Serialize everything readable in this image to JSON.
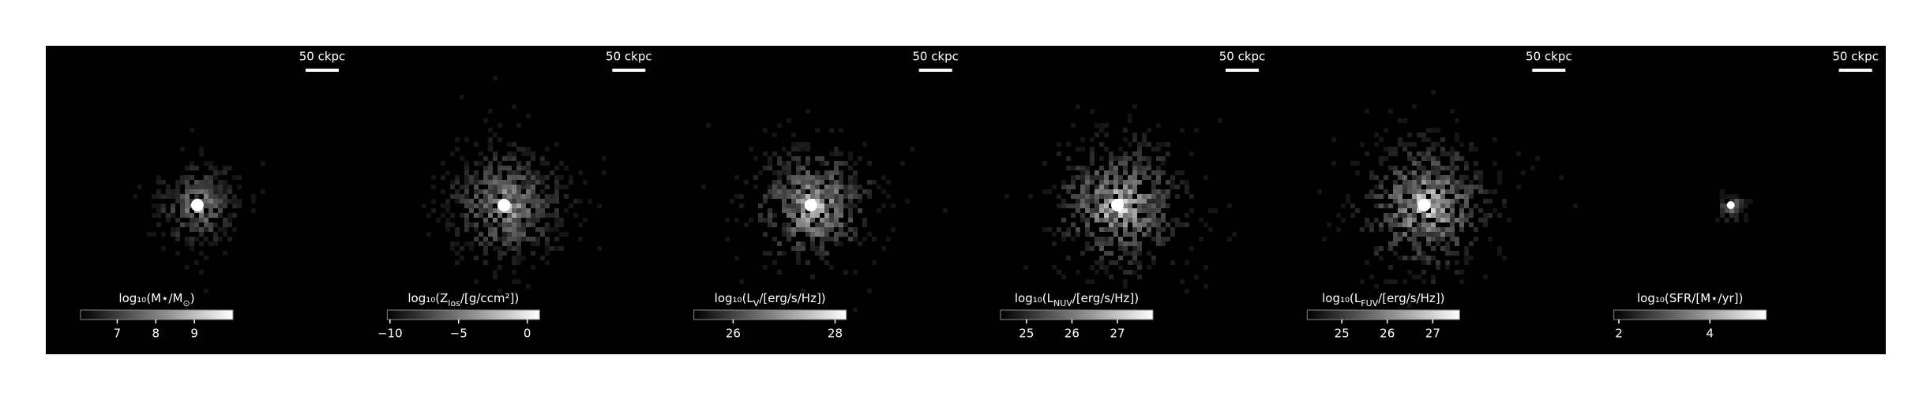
{
  "panels": [
    {
      "scale_bar": "50 ckpc",
      "colorbar": {
        "label": [
          "log₁₀(M⋆/M",
          "⊙",
          ")"
        ],
        "lim": [
          6.05,
          10.0
        ],
        "ticks": [
          7,
          8,
          9
        ]
      }
    },
    {
      "scale_bar": "50 ckpc",
      "colorbar": {
        "label": [
          "log₁₀(Z",
          "los",
          "/[g/ccm²])"
        ],
        "lim": [
          -10.2,
          0.9
        ],
        "ticks": [
          {
            "value": -10,
            "label": "−10"
          },
          {
            "value": -5,
            "label": "−5"
          },
          0
        ]
      }
    },
    {
      "scale_bar": "50 ckpc",
      "colorbar": {
        "label": [
          "log₁₀(L",
          "V",
          "/[erg/s/Hz])"
        ],
        "lim": [
          25.23,
          28.22
        ],
        "ticks": [
          26,
          28
        ]
      }
    },
    {
      "scale_bar": "50 ckpc",
      "colorbar": {
        "label": [
          "log₁₀(L",
          "NUV",
          "/[erg/s/Hz])"
        ],
        "lim": [
          24.43,
          27.78
        ],
        "ticks": [
          25,
          26,
          27
        ]
      }
    },
    {
      "scale_bar": "50 ckpc",
      "colorbar": {
        "label": [
          "log₁₀(L",
          "FUV",
          "/[erg/s/Hz])"
        ],
        "lim": [
          24.24,
          27.59
        ],
        "ticks": [
          25,
          26,
          27
        ]
      }
    },
    {
      "scale_bar": "50 ckpc",
      "colorbar": {
        "label": [
          "log₁₀(SFR/[M⋆/yr])"
        ],
        "lim": [
          1.89,
          5.24
        ],
        "ticks": [
          2,
          4
        ]
      }
    }
  ]
}
